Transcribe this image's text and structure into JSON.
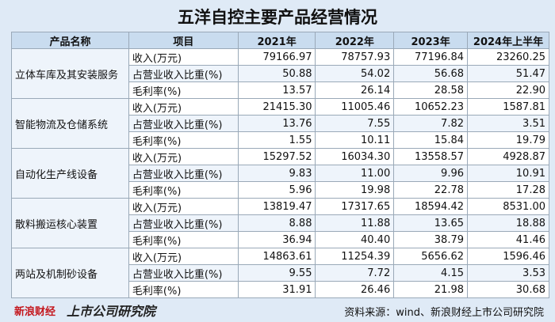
{
  "title": "五洋自控主要产品经营情况",
  "table": {
    "headers": [
      "产品名称",
      "项目",
      "2021年",
      "2022年",
      "2023年",
      "2024年上半年"
    ],
    "groups": [
      {
        "product": "立体车库及其安装服务",
        "rows": [
          [
            "收入(万元)",
            "79166.97",
            "78757.93",
            "77196.84",
            "23260.25"
          ],
          [
            "占营业收入比重(%)",
            "50.88",
            "54.02",
            "56.68",
            "51.47"
          ],
          [
            "毛利率(%)",
            "13.57",
            "26.14",
            "28.58",
            "22.90"
          ]
        ]
      },
      {
        "product": "智能物流及仓储系统",
        "rows": [
          [
            "收入(万元)",
            "21415.30",
            "11005.46",
            "10652.23",
            "1587.81"
          ],
          [
            "占营业收入比重(%)",
            "13.76",
            "7.55",
            "7.82",
            "3.51"
          ],
          [
            "毛利率(%)",
            "1.55",
            "10.11",
            "15.84",
            "19.79"
          ]
        ]
      },
      {
        "product": "自动化生产线设备",
        "rows": [
          [
            "收入(万元)",
            "15297.52",
            "16034.30",
            "13558.57",
            "4928.87"
          ],
          [
            "占营业收入比重(%)",
            "9.83",
            "11.00",
            "9.96",
            "10.91"
          ],
          [
            "毛利率(%)",
            "5.96",
            "19.98",
            "22.78",
            "17.28"
          ]
        ]
      },
      {
        "product": "散料搬运核心装置",
        "rows": [
          [
            "收入(万元)",
            "13819.47",
            "17317.65",
            "18594.42",
            "8531.00"
          ],
          [
            "占营业收入比重(%)",
            "8.88",
            "11.88",
            "13.65",
            "18.88"
          ],
          [
            "毛利率(%)",
            "36.94",
            "40.40",
            "38.79",
            "41.46"
          ]
        ]
      },
      {
        "product": "两站及机制砂设备",
        "rows": [
          [
            "收入(万元)",
            "14863.61",
            "11254.39",
            "5656.62",
            "1596.46"
          ],
          [
            "占营业收入比重(%)",
            "9.55",
            "7.72",
            "4.15",
            "3.53"
          ],
          [
            "毛利率(%)",
            "31.91",
            "26.46",
            "21.98",
            "30.68"
          ]
        ]
      }
    ]
  },
  "source": "资料来源：wind、新浪财经上市公司研究院",
  "logo": {
    "brand": "新浪财经",
    "institute": "上市公司研究院"
  }
}
